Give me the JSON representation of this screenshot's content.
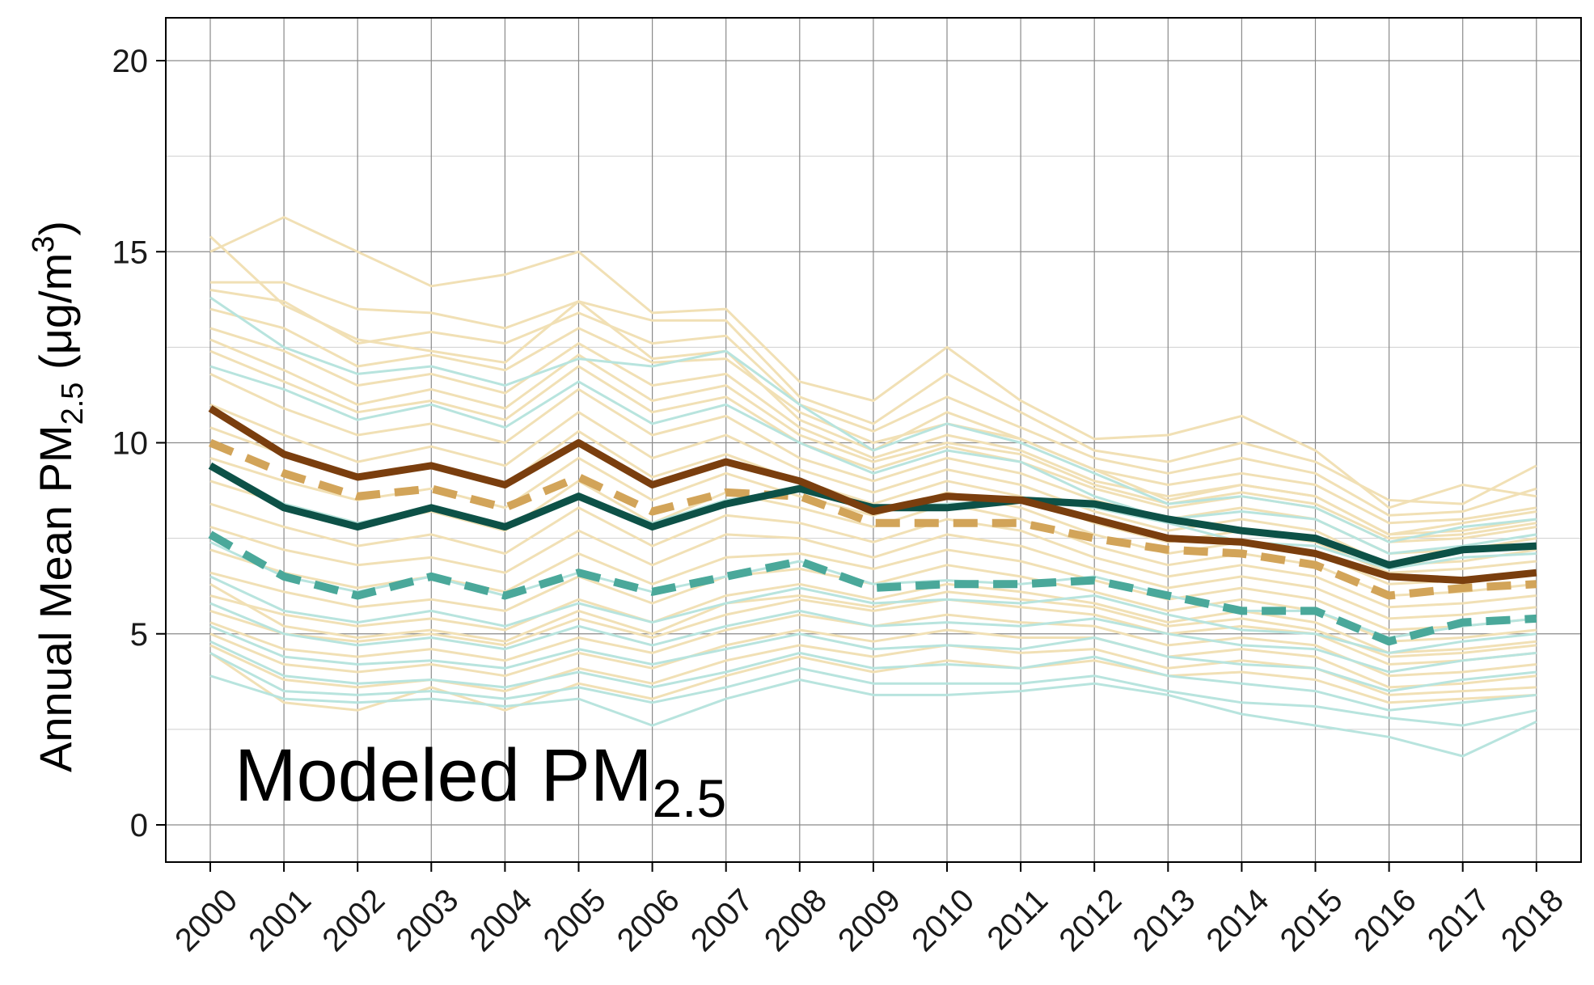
{
  "chart_data": {
    "type": "line",
    "title": "",
    "annotation": {
      "main": "Modeled PM",
      "sub": "2.5"
    },
    "ylabel": {
      "main": "Annual Mean PM",
      "sub": "2.5",
      "unit_open": " (μg/m",
      "sup": "3",
      "unit_close": ")"
    },
    "xlabel": "",
    "x": [
      "2000",
      "2001",
      "2002",
      "2003",
      "2004",
      "2005",
      "2006",
      "2007",
      "2008",
      "2009",
      "2010",
      "2011",
      "2012",
      "2013",
      "2014",
      "2015",
      "2016",
      "2017",
      "2018"
    ],
    "ylim": [
      -1,
      21
    ],
    "yticks": [
      "0",
      "5",
      "10",
      "15",
      "20"
    ],
    "grid": true,
    "legend": "none",
    "colors": {
      "tan_thin": "#f1e0b5",
      "teal_thin": "#b8e4de",
      "brown_solid": "#7a3e0e",
      "tan_dashed": "#d2a459",
      "darkteal_solid": "#0d5147",
      "teal_dashed": "#4aa89a"
    },
    "series": [
      {
        "style": "tan_thin",
        "values": [
          15.4,
          13.6,
          12.7,
          12.4,
          12.1,
          13.7,
          12.2,
          12.4,
          10.6,
          9.8,
          10.8,
          10.1,
          9.3,
          8.5,
          8.9,
          8.6,
          7.6,
          7.9,
          8.2
        ]
      },
      {
        "style": "tan_thin",
        "values": [
          15.0,
          15.9,
          15.0,
          14.1,
          14.4,
          15.0,
          13.4,
          13.5,
          11.6,
          11.1,
          12.5,
          11.1,
          10.1,
          10.2,
          10.7,
          9.8,
          8.3,
          8.9,
          8.6
        ]
      },
      {
        "style": "tan_thin",
        "values": [
          14.2,
          14.2,
          13.5,
          13.4,
          13.0,
          13.7,
          13.2,
          13.2,
          11.2,
          10.5,
          11.8,
          10.8,
          9.8,
          9.5,
          10.0,
          9.5,
          8.5,
          8.4,
          9.4
        ]
      },
      {
        "style": "tan_thin",
        "values": [
          14.0,
          13.7,
          12.6,
          12.9,
          12.6,
          13.4,
          12.6,
          12.8,
          11.0,
          10.3,
          11.2,
          10.4,
          9.6,
          9.2,
          9.6,
          9.2,
          8.1,
          8.2,
          8.8
        ]
      },
      {
        "style": "tan_thin",
        "values": [
          13.5,
          13.0,
          12.0,
          12.3,
          11.9,
          13.0,
          12.1,
          12.2,
          10.8,
          10.0,
          10.5,
          10.1,
          9.3,
          8.9,
          9.2,
          8.9,
          7.9,
          8.0,
          8.3
        ]
      },
      {
        "style": "tan_thin",
        "values": [
          13.0,
          12.4,
          11.5,
          11.8,
          11.3,
          12.6,
          11.5,
          11.8,
          10.4,
          9.6,
          10.2,
          9.8,
          9.0,
          8.6,
          8.9,
          8.6,
          7.6,
          7.7,
          8.0
        ]
      },
      {
        "style": "tan_thin",
        "values": [
          12.4,
          11.6,
          10.8,
          11.1,
          10.6,
          12.0,
          10.8,
          11.2,
          10.0,
          9.3,
          9.9,
          9.5,
          8.8,
          8.3,
          8.6,
          8.3,
          7.4,
          7.5,
          7.8
        ]
      },
      {
        "style": "tan_thin",
        "values": [
          11.8,
          10.9,
          10.2,
          10.5,
          10.0,
          11.4,
          10.2,
          10.7,
          9.6,
          9.0,
          9.6,
          9.2,
          8.5,
          8.0,
          8.3,
          8.0,
          7.1,
          7.2,
          7.5
        ]
      },
      {
        "style": "tan_thin",
        "values": [
          11.0,
          10.2,
          9.5,
          9.9,
          9.4,
          10.8,
          9.6,
          10.2,
          9.3,
          8.7,
          9.3,
          8.9,
          8.2,
          7.7,
          8.0,
          7.7,
          6.8,
          6.9,
          7.2
        ]
      },
      {
        "style": "tan_thin",
        "values": [
          10.4,
          9.7,
          9.1,
          9.4,
          8.9,
          10.3,
          9.1,
          9.7,
          9.0,
          8.4,
          9.0,
          8.6,
          7.9,
          7.4,
          7.7,
          7.4,
          6.6,
          6.7,
          6.9
        ]
      },
      {
        "style": "tan_thin",
        "values": [
          9.6,
          9.0,
          8.5,
          8.8,
          8.3,
          9.6,
          8.5,
          9.2,
          8.6,
          8.1,
          8.7,
          8.3,
          7.6,
          7.1,
          7.4,
          7.1,
          6.3,
          6.4,
          6.6
        ]
      },
      {
        "style": "tan_thin",
        "values": [
          9.0,
          8.4,
          7.9,
          8.2,
          7.7,
          9.0,
          7.9,
          8.7,
          8.3,
          7.8,
          8.4,
          8.0,
          7.3,
          6.8,
          7.1,
          6.8,
          6.0,
          6.1,
          6.3
        ]
      },
      {
        "style": "tan_thin",
        "values": [
          8.4,
          7.8,
          7.3,
          7.6,
          7.1,
          8.3,
          7.3,
          8.1,
          7.9,
          7.4,
          8.0,
          7.7,
          7.0,
          6.5,
          6.8,
          6.5,
          5.7,
          5.8,
          6.0
        ]
      },
      {
        "style": "tan_thin",
        "values": [
          7.8,
          7.2,
          6.8,
          7.0,
          6.6,
          7.7,
          6.8,
          7.6,
          7.5,
          7.0,
          7.6,
          7.3,
          6.7,
          6.2,
          6.5,
          6.2,
          5.4,
          5.5,
          5.7
        ]
      },
      {
        "style": "tan_thin",
        "values": [
          7.2,
          6.6,
          6.2,
          6.5,
          6.1,
          7.1,
          6.3,
          7.0,
          7.1,
          6.7,
          7.2,
          6.9,
          6.4,
          5.9,
          6.2,
          5.9,
          5.1,
          5.2,
          5.4
        ]
      },
      {
        "style": "tan_thin",
        "values": [
          6.6,
          6.1,
          5.7,
          5.9,
          5.6,
          6.5,
          5.8,
          6.5,
          6.7,
          6.3,
          6.8,
          6.5,
          6.1,
          5.6,
          5.9,
          5.6,
          4.8,
          4.9,
          5.1
        ]
      },
      {
        "style": "tan_thin",
        "values": [
          6.0,
          5.5,
          5.2,
          5.4,
          5.1,
          5.9,
          5.3,
          6.0,
          6.3,
          5.9,
          6.3,
          6.1,
          5.8,
          5.3,
          5.6,
          5.3,
          4.5,
          4.6,
          4.8
        ]
      },
      {
        "style": "tan_thin",
        "values": [
          5.6,
          5.0,
          4.8,
          5.0,
          4.7,
          5.4,
          4.9,
          5.5,
          5.9,
          5.6,
          5.9,
          5.7,
          5.5,
          5.0,
          5.2,
          5.0,
          4.2,
          4.3,
          4.5
        ]
      },
      {
        "style": "tan_thin",
        "values": [
          5.3,
          4.6,
          4.4,
          4.6,
          4.3,
          4.9,
          4.5,
          5.1,
          5.5,
          5.2,
          5.5,
          5.3,
          5.2,
          4.7,
          4.9,
          4.7,
          3.9,
          4.0,
          4.2
        ]
      },
      {
        "style": "tan_thin",
        "values": [
          5.0,
          4.2,
          4.0,
          4.2,
          3.9,
          4.5,
          4.1,
          4.7,
          5.1,
          4.8,
          5.1,
          4.9,
          4.9,
          4.4,
          4.6,
          4.4,
          3.6,
          3.7,
          3.9
        ]
      },
      {
        "style": "tan_thin",
        "values": [
          4.7,
          3.8,
          3.6,
          3.8,
          3.5,
          4.1,
          3.7,
          4.3,
          4.7,
          4.4,
          4.7,
          4.5,
          4.6,
          4.1,
          4.3,
          4.1,
          3.4,
          3.5,
          3.6
        ]
      },
      {
        "style": "tan_thin",
        "values": [
          4.5,
          3.2,
          3.0,
          3.6,
          3.0,
          3.7,
          3.3,
          3.9,
          4.4,
          4.0,
          4.3,
          4.1,
          4.3,
          3.9,
          4.0,
          3.8,
          3.2,
          3.3,
          3.4
        ]
      },
      {
        "style": "tan_thin",
        "values": [
          6.3,
          5.2,
          4.9,
          5.1,
          4.8,
          5.6,
          5.0,
          5.8,
          6.0,
          5.7,
          6.1,
          5.9,
          5.7,
          5.2,
          5.4,
          5.1,
          4.4,
          4.5,
          4.7
        ]
      },
      {
        "style": "tan_thin",
        "values": [
          12.7,
          11.9,
          11.0,
          11.4,
          10.9,
          12.3,
          11.1,
          11.5,
          10.2,
          9.5,
          10.0,
          9.7,
          8.9,
          8.4,
          8.7,
          8.4,
          7.5,
          7.6,
          7.9
        ]
      },
      {
        "style": "teal_thin",
        "values": [
          13.8,
          12.5,
          11.8,
          12.0,
          11.5,
          12.2,
          12.0,
          12.4,
          11.0,
          9.8,
          10.5,
          10.0,
          9.2,
          8.4,
          8.6,
          8.3,
          7.4,
          7.8,
          8.0
        ]
      },
      {
        "style": "teal_thin",
        "values": [
          12.0,
          11.4,
          10.6,
          11.0,
          10.4,
          11.6,
          10.5,
          11.0,
          10.0,
          9.2,
          9.8,
          9.5,
          8.6,
          8.0,
          8.2,
          8.0,
          7.1,
          7.3,
          7.6
        ]
      },
      {
        "style": "teal_thin",
        "values": [
          9.4,
          8.4,
          7.9,
          8.3,
          7.8,
          8.6,
          7.9,
          8.5,
          8.8,
          8.3,
          8.4,
          8.5,
          8.3,
          7.9,
          7.4,
          7.3,
          6.7,
          7.0,
          7.1
        ]
      },
      {
        "style": "teal_thin",
        "values": [
          7.4,
          6.5,
          6.1,
          6.5,
          6.0,
          6.6,
          6.1,
          6.5,
          6.9,
          6.3,
          6.4,
          6.3,
          6.5,
          6.0,
          5.6,
          5.6,
          4.9,
          5.2,
          5.4
        ]
      },
      {
        "style": "teal_thin",
        "values": [
          6.5,
          5.6,
          5.3,
          5.6,
          5.2,
          5.8,
          5.3,
          5.8,
          6.2,
          5.8,
          5.9,
          5.8,
          6.0,
          5.5,
          5.1,
          5.0,
          4.5,
          4.8,
          5.0
        ]
      },
      {
        "style": "teal_thin",
        "values": [
          5.8,
          5.0,
          4.7,
          4.9,
          4.6,
          5.2,
          4.7,
          5.2,
          5.6,
          5.2,
          5.3,
          5.2,
          5.4,
          5.0,
          4.7,
          4.6,
          4.0,
          4.3,
          4.5
        ]
      },
      {
        "style": "teal_thin",
        "values": [
          5.2,
          4.4,
          4.2,
          4.3,
          4.1,
          4.6,
          4.2,
          4.6,
          5.0,
          4.6,
          4.7,
          4.6,
          4.9,
          4.4,
          4.2,
          4.1,
          3.5,
          3.8,
          4.0
        ]
      },
      {
        "style": "teal_thin",
        "values": [
          4.8,
          3.9,
          3.7,
          3.8,
          3.6,
          4.0,
          3.6,
          4.0,
          4.5,
          4.1,
          4.2,
          4.1,
          4.4,
          3.9,
          3.7,
          3.5,
          3.0,
          3.2,
          3.4
        ]
      },
      {
        "style": "teal_thin",
        "values": [
          4.5,
          3.5,
          3.4,
          3.5,
          3.3,
          3.6,
          3.2,
          3.6,
          4.1,
          3.7,
          3.7,
          3.7,
          3.9,
          3.5,
          3.2,
          3.1,
          2.8,
          2.6,
          3.0
        ]
      },
      {
        "style": "teal_thin",
        "values": [
          3.9,
          3.3,
          3.2,
          3.3,
          3.1,
          3.3,
          2.6,
          3.3,
          3.8,
          3.4,
          3.4,
          3.5,
          3.7,
          3.4,
          2.9,
          2.6,
          2.3,
          1.8,
          2.7
        ]
      },
      {
        "style": "tan_dashed",
        "values": [
          10.0,
          9.2,
          8.6,
          8.8,
          8.3,
          9.1,
          8.2,
          8.7,
          8.6,
          7.9,
          7.9,
          7.9,
          7.5,
          7.2,
          7.1,
          6.8,
          6.0,
          6.2,
          6.3
        ]
      },
      {
        "style": "teal_dashed",
        "values": [
          7.6,
          6.5,
          6.0,
          6.5,
          6.0,
          6.6,
          6.1,
          6.5,
          6.9,
          6.2,
          6.3,
          6.3,
          6.4,
          6.0,
          5.6,
          5.6,
          4.8,
          5.3,
          5.4
        ]
      },
      {
        "style": "darkteal_solid",
        "values": [
          9.4,
          8.3,
          7.8,
          8.3,
          7.8,
          8.6,
          7.8,
          8.4,
          8.8,
          8.3,
          8.3,
          8.5,
          8.4,
          8.0,
          7.7,
          7.5,
          6.8,
          7.2,
          7.3
        ]
      },
      {
        "style": "brown_solid",
        "values": [
          10.9,
          9.7,
          9.1,
          9.4,
          8.9,
          10.0,
          8.9,
          9.5,
          9.0,
          8.2,
          8.6,
          8.5,
          8.0,
          7.5,
          7.4,
          7.1,
          6.5,
          6.4,
          6.6
        ]
      }
    ]
  }
}
